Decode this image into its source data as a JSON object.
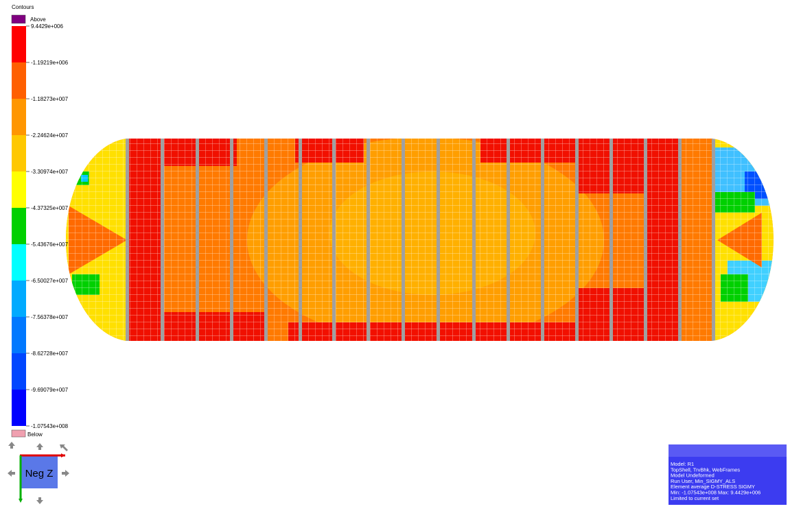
{
  "legend": {
    "title": "Contours",
    "above": "Above",
    "below": "Below",
    "labels": [
      "9.4429e+006",
      "-1.19219e+006",
      "-1.18273e+007",
      "-2.24624e+007",
      "-3.30974e+007",
      "-4.37325e+007",
      "-5.43676e+007",
      "-6.50027e+007",
      "-7.56378e+007",
      "-8.62728e+007",
      "-9.69079e+007",
      "-1.07543e+008"
    ],
    "colors": [
      "#ff0000",
      "#ff5f00",
      "#ff9600",
      "#ffc800",
      "#ffff00",
      "#00d000",
      "#00ffff",
      "#00aaff",
      "#0078ff",
      "#0046ff",
      "#0000ff"
    ],
    "above_color": "#800080",
    "below_color": "#f0a0b0"
  },
  "view": {
    "label": "Neg Z"
  },
  "info": {
    "lines": [
      "Model: R1",
      "TopShell, TrvBhk, WebFrames",
      "Model Undeformed",
      "Run User, Min_SIGMY_ALS",
      "Element average D-STRESS SIGMY",
      "Min: -1.07543e+008 Max: 9.4429e+006",
      "Limited to current set"
    ]
  }
}
